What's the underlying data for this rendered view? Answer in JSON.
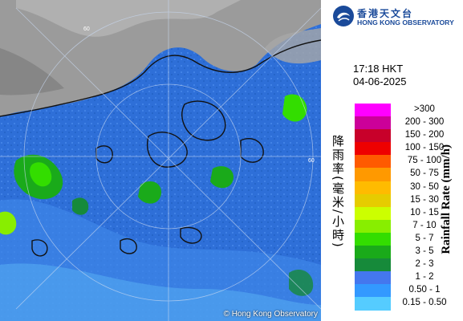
{
  "map": {
    "copyright": "© Hong Kong Observatory",
    "grid_label": "60"
  },
  "logo": {
    "name_zh": "香港天文台",
    "name_en": "HONG KONG OBSERVATORY"
  },
  "timestamp": {
    "time": "17:18 HKT",
    "date": "04-06-2025"
  },
  "legend": {
    "title_zh": "降雨率(毫米/小時)",
    "title_en": "Rainfall Rate (mm/h)",
    "items": [
      {
        "range": ">300",
        "color": "#ff00ff"
      },
      {
        "range": "200 - 300",
        "color": "#cc0099"
      },
      {
        "range": "150 - 200",
        "color": "#c8002a"
      },
      {
        "range": "100 - 150",
        "color": "#ee0000"
      },
      {
        "range": "75 - 100",
        "color": "#ff5a00"
      },
      {
        "range": "50 - 75",
        "color": "#ff9900"
      },
      {
        "range": "30 - 50",
        "color": "#ffbb00"
      },
      {
        "range": "15 - 30",
        "color": "#e6cc00"
      },
      {
        "range": "10 - 15",
        "color": "#ccff00"
      },
      {
        "range": "7 - 10",
        "color": "#88ee00"
      },
      {
        "range": "5 - 7",
        "color": "#33dd00"
      },
      {
        "range": "3 - 5",
        "color": "#1aaa1a"
      },
      {
        "range": "2 - 3",
        "color": "#168a3a"
      },
      {
        "range": "1 - 2",
        "color": "#4477ee"
      },
      {
        "range": "0.50 - 1",
        "color": "#3399ff"
      },
      {
        "range": "0.15 - 0.50",
        "color": "#55ccff"
      }
    ]
  }
}
